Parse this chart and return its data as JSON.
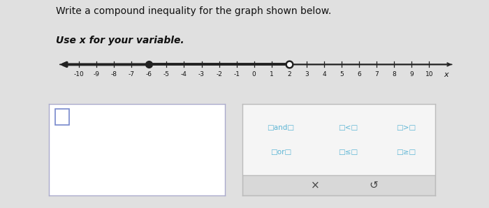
{
  "title": "Write a compound inequality for the graph shown below.",
  "subtitle": "Use x for your variable.",
  "bg_color": "#e0e0e0",
  "content_bg": "#f0f0f0",
  "number_line": {
    "filled_dot": -6,
    "open_dot": 2,
    "line_color": "#222222",
    "dot_fill_color": "#222222",
    "dot_size": 7
  },
  "tick_values": [
    -10,
    -9,
    -8,
    -7,
    -6,
    -5,
    -4,
    -3,
    -2,
    -1,
    0,
    1,
    2,
    3,
    4,
    5,
    6,
    7,
    8,
    9,
    10
  ],
  "tick_labels": [
    "-10",
    "-9",
    "-8",
    "-7",
    "-6",
    "-5",
    "-4",
    "-3",
    "-2",
    "-1",
    "0",
    "1",
    "2",
    "3",
    "4",
    "5",
    "6",
    "7",
    "8",
    "9",
    "10"
  ],
  "answer_box_color": "#ffffff",
  "answer_box_border": "#aaaacc",
  "button_panel_bg": "#f5f5f5",
  "button_panel_border": "#bbbbbb",
  "button_color": "#5ab4d4",
  "bottom_bar_color": "#d8d8d8",
  "btn_row1": [
    "□and□",
    "□<□",
    "□>□"
  ],
  "btn_row2": [
    "□or□",
    "□≤□",
    "□≥□"
  ],
  "title_fontsize": 10,
  "subtitle_fontsize": 10,
  "tick_fontsize": 6.5,
  "btn_fontsize": 7.5
}
